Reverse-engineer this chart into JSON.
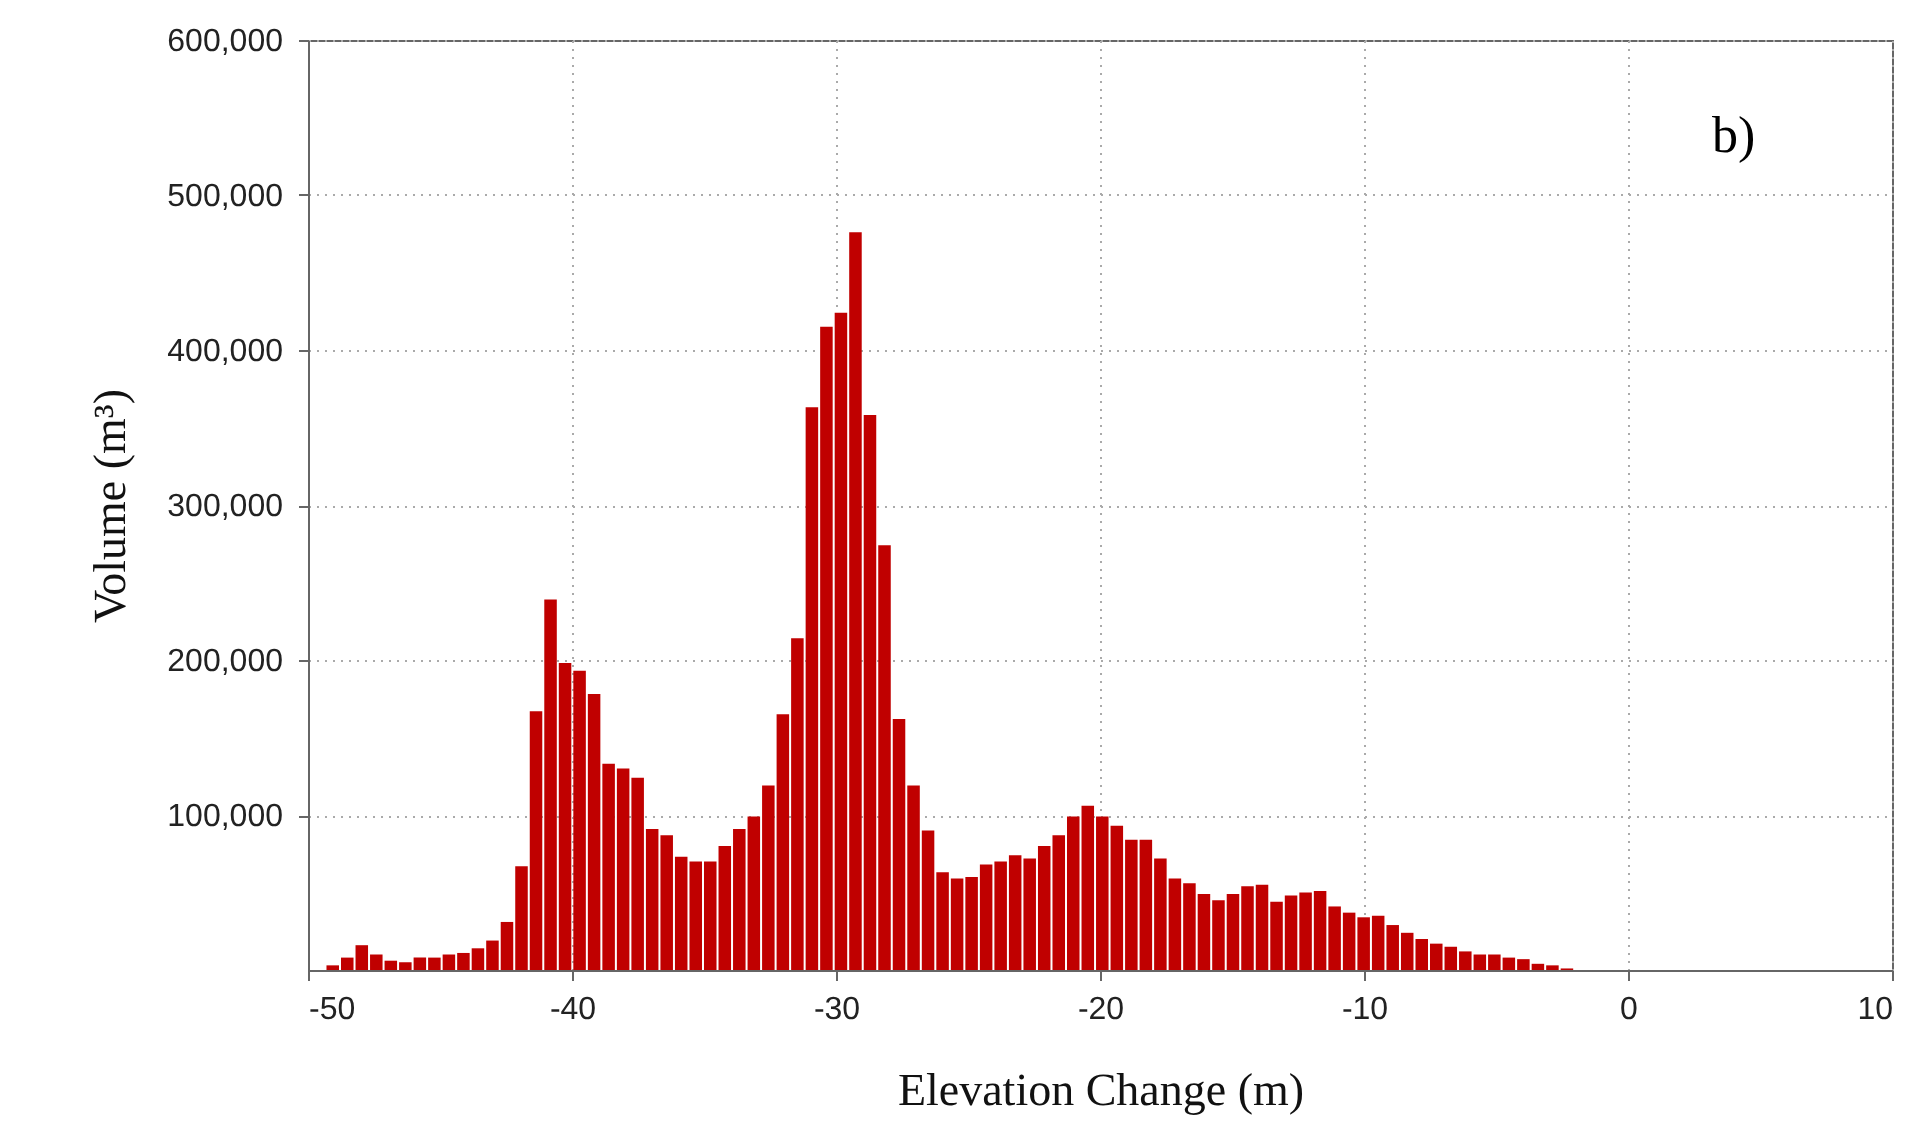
{
  "chart_data": {
    "type": "histogram",
    "xlabel": "Elevation Change (m)",
    "ylabel": "Volume (m³)",
    "annotations": [
      "b)"
    ],
    "color": "#c00000",
    "bins": [
      -49.3,
      -48.75,
      -48.2,
      -47.65,
      -47.1,
      -46.55,
      -46,
      -45.45,
      -44.9,
      -44.35,
      -43.8,
      -43.25,
      -42.7,
      -42.15,
      -41.6,
      -41.05,
      -40.5,
      -39.95,
      -39.4,
      -38.85,
      -38.3,
      -37.75,
      -37.2,
      -36.65,
      -36.1,
      -35.55,
      -35,
      -34.45,
      -33.9,
      -33.35,
      -32.8,
      -32.25,
      -31.7,
      -31.15,
      -30.6,
      -30.05,
      -29.5,
      -28.95,
      -28.4,
      -27.85,
      -27.3,
      -26.75,
      -26.2,
      -25.65,
      -25.1,
      -24.55,
      -24,
      -23.45,
      -22.9,
      -22.35,
      -21.8,
      -21.25,
      -20.7,
      -20.15,
      -19.6,
      -19.05,
      -18.5,
      -17.95,
      -17.4,
      -16.85,
      -16.3,
      -15.75,
      -15.2,
      -14.65,
      -14.1,
      -13.55,
      -13,
      -12.45,
      -11.9,
      -11.35,
      -10.8,
      -10.25,
      -9.7,
      -9.15,
      -8.6,
      -8.05,
      -7.5,
      -6.95,
      -6.4,
      -5.85,
      -5.3,
      -4.75,
      -4.2,
      -3.65,
      -3.1,
      -2.55,
      -2,
      -1.45,
      -0.9,
      -0.35,
      0.2,
      0.75,
      1.3
    ],
    "values": [
      3000,
      8000,
      16000,
      10000,
      6000,
      5000,
      8000,
      8000,
      10000,
      11000,
      14000,
      19000,
      31000,
      67000,
      167000,
      239000,
      198000,
      193000,
      178000,
      133000,
      130000,
      124000,
      91000,
      87000,
      73000,
      70000,
      70000,
      80000,
      91000,
      99000,
      119000,
      165000,
      214000,
      363000,
      415000,
      424000,
      476000,
      358000,
      274000,
      162000,
      119000,
      90000,
      63000,
      59000,
      60000,
      68000,
      70000,
      74000,
      72000,
      80000,
      87000,
      99000,
      106000,
      99000,
      93000,
      84000,
      84000,
      72000,
      59000,
      56000,
      49000,
      45000,
      49000,
      54000,
      55000,
      44000,
      48000,
      50000,
      51000,
      41000,
      37000,
      34000,
      35000,
      29000,
      24000,
      20000,
      17000,
      15000,
      12000,
      10000,
      10000,
      8000,
      7000,
      4000,
      3000,
      1000,
      0,
      0,
      0,
      0,
      0,
      0
    ],
    "xlim": [
      -50,
      10
    ],
    "xticks": [
      {
        "value": -50,
        "label": "-50"
      },
      {
        "value": -40,
        "label": "-40"
      },
      {
        "value": -30,
        "label": "-30"
      },
      {
        "value": -20,
        "label": "-20"
      },
      {
        "value": -10,
        "label": "-10"
      },
      0,
      10
    ],
    "ylim": [
      0,
      600000
    ],
    "yticks": [
      {
        "value": 100000,
        "label": "100,000"
      },
      {
        "value": 200000,
        "label": "200,000"
      },
      {
        "value": 300000,
        "label": "300,000"
      },
      {
        "value": 400000,
        "label": "400,000"
      },
      {
        "value": 500000,
        "label": "500,000"
      },
      {
        "value": 600000,
        "label": "600,000"
      }
    ],
    "grid": true
  }
}
